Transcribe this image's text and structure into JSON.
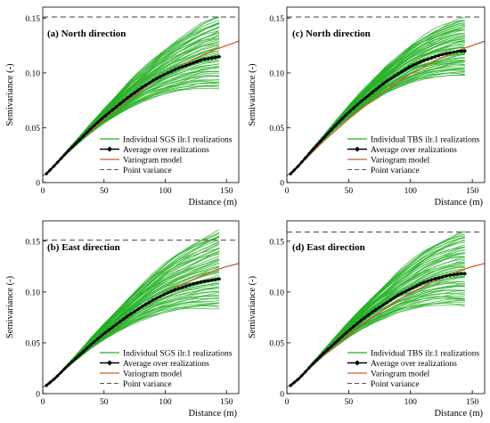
{
  "chart_data": [
    {
      "type": "line",
      "title": "(a) North direction",
      "xlabel": "Distance (m)",
      "ylabel": "Semivariance (-)",
      "xlim": [
        0,
        160
      ],
      "ylim": [
        0,
        0.16
      ],
      "xticks": [
        "0",
        "50",
        "100",
        "150"
      ],
      "yticks": [
        "0",
        "0.05",
        "0.10",
        "0.15"
      ],
      "grid": false,
      "legend_position": "bottom-right",
      "legend": [
        "Individual SGS ilr.1 realizations",
        "Average over realizations",
        "Variogram model",
        "Point variance"
      ],
      "colors": {
        "realizations": "#22b022",
        "average": "#000000",
        "model": "#c8602a",
        "point_variance": "#555555"
      },
      "series": [
        {
          "name": "Average over realizations",
          "x": [
            3,
            10,
            20,
            30,
            40,
            50,
            60,
            70,
            80,
            90,
            100,
            110,
            120,
            130,
            140,
            145
          ],
          "y": [
            0.008,
            0.016,
            0.028,
            0.039,
            0.05,
            0.06,
            0.069,
            0.078,
            0.086,
            0.093,
            0.099,
            0.104,
            0.108,
            0.112,
            0.114,
            0.115
          ]
        },
        {
          "name": "Variogram model",
          "x": [
            0,
            10,
            20,
            30,
            40,
            50,
            60,
            70,
            80,
            90,
            100,
            110,
            120,
            130,
            140,
            150,
            160
          ],
          "y": [
            0.006,
            0.016,
            0.027,
            0.038,
            0.048,
            0.058,
            0.067,
            0.076,
            0.084,
            0.092,
            0.099,
            0.105,
            0.111,
            0.116,
            0.121,
            0.125,
            0.129
          ]
        },
        {
          "name": "Point variance",
          "x": [
            0,
            160
          ],
          "y": [
            0.151,
            0.151
          ]
        },
        {
          "name": "Realizations envelope",
          "x": [
            3,
            145
          ],
          "y_upper_end": 0.152,
          "y_lower_end": 0.086,
          "count": 60
        }
      ]
    },
    {
      "type": "line",
      "title": "(c) North direction",
      "xlabel": "Distance (m)",
      "ylabel": "Semivariance (-)",
      "xlim": [
        0,
        160
      ],
      "ylim": [
        0,
        0.16
      ],
      "xticks": [
        "0",
        "50",
        "100",
        "150"
      ],
      "yticks": [
        "0",
        "0.05",
        "0.10",
        "0.15"
      ],
      "grid": false,
      "legend_position": "bottom-right",
      "legend": [
        "Individual TBS ilr.1 realizations",
        "Average over realizations",
        "Variogram model",
        "Point variance"
      ],
      "colors": {
        "realizations": "#22b022",
        "average": "#000000",
        "model": "#c8602a",
        "point_variance": "#555555"
      },
      "series": [
        {
          "name": "Average over realizations",
          "x": [
            3,
            10,
            20,
            30,
            40,
            50,
            60,
            70,
            80,
            90,
            100,
            110,
            120,
            130,
            140,
            145
          ],
          "y": [
            0.008,
            0.016,
            0.029,
            0.041,
            0.053,
            0.064,
            0.074,
            0.083,
            0.092,
            0.099,
            0.106,
            0.111,
            0.115,
            0.118,
            0.12,
            0.12
          ]
        },
        {
          "name": "Variogram model",
          "x": [
            0,
            10,
            20,
            30,
            40,
            50,
            60,
            70,
            80,
            90,
            100,
            110,
            120,
            130,
            140,
            150,
            160
          ],
          "y": [
            0.006,
            0.016,
            0.027,
            0.038,
            0.048,
            0.058,
            0.067,
            0.076,
            0.084,
            0.092,
            0.099,
            0.105,
            0.111,
            0.116,
            0.121,
            0.125,
            0.129
          ]
        },
        {
          "name": "Point variance",
          "x": [
            0,
            160
          ],
          "y": [
            0.151,
            0.151
          ]
        },
        {
          "name": "Realizations envelope",
          "x": [
            3,
            145
          ],
          "y_upper_end": 0.15,
          "y_lower_end": 0.097,
          "count": 60
        }
      ]
    },
    {
      "type": "line",
      "title": "(b) East direction",
      "xlabel": "Distance (m)",
      "ylabel": "Semivariance (-)",
      "xlim": [
        0,
        160
      ],
      "ylim": [
        0,
        0.17
      ],
      "xticks": [
        "0",
        "50",
        "100",
        "150"
      ],
      "yticks": [
        "0",
        "0.05",
        "0.10",
        "0.15"
      ],
      "grid": false,
      "legend_position": "bottom-right",
      "legend": [
        "Individual SGS ilr.1 realizations",
        "Average over realizations",
        "Variogram model",
        "Point variance"
      ],
      "colors": {
        "realizations": "#22b022",
        "average": "#000000",
        "model": "#c8602a",
        "point_variance": "#555555"
      },
      "series": [
        {
          "name": "Average over realizations",
          "x": [
            3,
            10,
            20,
            30,
            40,
            50,
            60,
            70,
            80,
            90,
            100,
            110,
            120,
            130,
            140,
            145
          ],
          "y": [
            0.008,
            0.015,
            0.027,
            0.038,
            0.049,
            0.059,
            0.068,
            0.077,
            0.085,
            0.092,
            0.098,
            0.103,
            0.107,
            0.11,
            0.112,
            0.113
          ]
        },
        {
          "name": "Variogram model",
          "x": [
            0,
            10,
            20,
            30,
            40,
            50,
            60,
            70,
            80,
            90,
            100,
            110,
            120,
            130,
            140,
            150,
            160
          ],
          "y": [
            0.006,
            0.016,
            0.027,
            0.038,
            0.048,
            0.058,
            0.067,
            0.076,
            0.084,
            0.092,
            0.099,
            0.105,
            0.111,
            0.116,
            0.121,
            0.125,
            0.128
          ]
        },
        {
          "name": "Point variance",
          "x": [
            0,
            160
          ],
          "y": [
            0.151,
            0.151
          ]
        },
        {
          "name": "Realizations envelope",
          "x": [
            3,
            145
          ],
          "y_upper_end": 0.161,
          "y_lower_end": 0.084,
          "count": 60
        }
      ]
    },
    {
      "type": "line",
      "title": "(d) East direction",
      "xlabel": "Distance (m)",
      "ylabel": "Semivariance (-)",
      "xlim": [
        0,
        160
      ],
      "ylim": [
        0,
        0.17
      ],
      "xticks": [
        "0",
        "50",
        "100",
        "150"
      ],
      "yticks": [
        "0",
        "0.05",
        "0.10",
        "0.15"
      ],
      "grid": false,
      "legend_position": "bottom-right",
      "legend": [
        "Individual TBS ilr.1 realizations",
        "Average over realizations",
        "Variogram model",
        "Point variance"
      ],
      "colors": {
        "realizations": "#22b022",
        "average": "#000000",
        "model": "#c8602a",
        "point_variance": "#555555"
      },
      "series": [
        {
          "name": "Average over realizations",
          "x": [
            3,
            10,
            20,
            30,
            40,
            50,
            60,
            70,
            80,
            90,
            100,
            110,
            120,
            130,
            140,
            145
          ],
          "y": [
            0.008,
            0.015,
            0.028,
            0.04,
            0.051,
            0.062,
            0.072,
            0.081,
            0.089,
            0.097,
            0.103,
            0.109,
            0.113,
            0.116,
            0.118,
            0.118
          ]
        },
        {
          "name": "Variogram model",
          "x": [
            0,
            10,
            20,
            30,
            40,
            50,
            60,
            70,
            80,
            90,
            100,
            110,
            120,
            130,
            140,
            150,
            160
          ],
          "y": [
            0.006,
            0.016,
            0.027,
            0.038,
            0.048,
            0.058,
            0.067,
            0.076,
            0.084,
            0.092,
            0.099,
            0.105,
            0.111,
            0.116,
            0.121,
            0.125,
            0.128
          ]
        },
        {
          "name": "Point variance",
          "x": [
            0,
            160
          ],
          "y": [
            0.159,
            0.159
          ]
        },
        {
          "name": "Realizations envelope",
          "x": [
            3,
            145
          ],
          "y_upper_end": 0.16,
          "y_lower_end": 0.086,
          "count": 60
        }
      ]
    }
  ]
}
